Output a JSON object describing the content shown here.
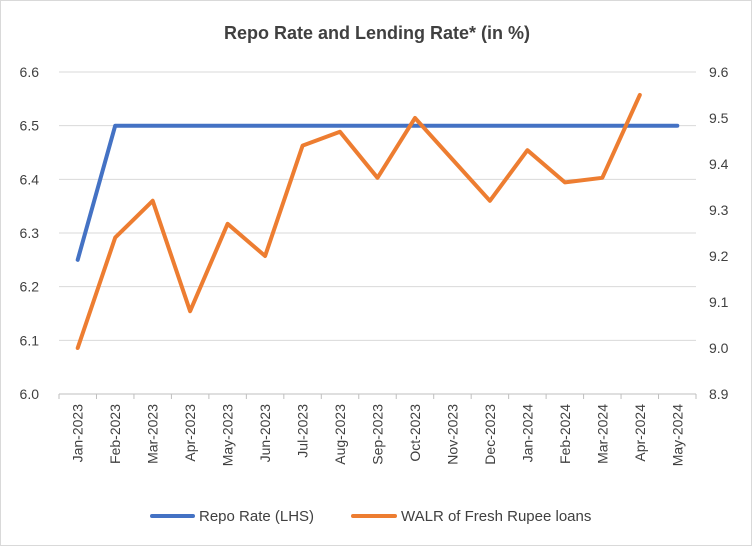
{
  "chart_data": {
    "type": "line",
    "title": "Repo Rate and Lending Rate* (in %)",
    "categories": [
      "Jan-2023",
      "Feb-2023",
      "Mar-2023",
      "Apr-2023",
      "May-2023",
      "Jun-2023",
      "Jul-2023",
      "Aug-2023",
      "Sep-2023",
      "Oct-2023",
      "Nov-2023",
      "Dec-2023",
      "Jan-2024",
      "Feb-2024",
      "Mar-2024",
      "Apr-2024",
      "May-2024"
    ],
    "y_left": {
      "min": 6.0,
      "max": 6.6,
      "ticks": [
        "6.0",
        "6.1",
        "6.2",
        "6.3",
        "6.4",
        "6.5",
        "6.6"
      ]
    },
    "y_right": {
      "min": 8.9,
      "max": 9.6,
      "ticks": [
        "8.9",
        "9.0",
        "9.1",
        "9.2",
        "9.3",
        "9.4",
        "9.5",
        "9.6"
      ]
    },
    "grid": true,
    "legend_position": "bottom",
    "series": [
      {
        "name": "Repo Rate (LHS)",
        "axis": "left",
        "color": "#4472C4",
        "values": [
          6.25,
          6.5,
          6.5,
          6.5,
          6.5,
          6.5,
          6.5,
          6.5,
          6.5,
          6.5,
          6.5,
          6.5,
          6.5,
          6.5,
          6.5,
          6.5,
          6.5
        ]
      },
      {
        "name": "WALR of Fresh Rupee loans",
        "axis": "right",
        "color": "#ED7D31",
        "values": [
          9.0,
          9.24,
          9.32,
          9.08,
          9.27,
          9.2,
          9.44,
          9.47,
          9.37,
          9.5,
          9.41,
          9.32,
          9.43,
          9.36,
          9.37,
          9.55,
          null
        ]
      }
    ]
  }
}
